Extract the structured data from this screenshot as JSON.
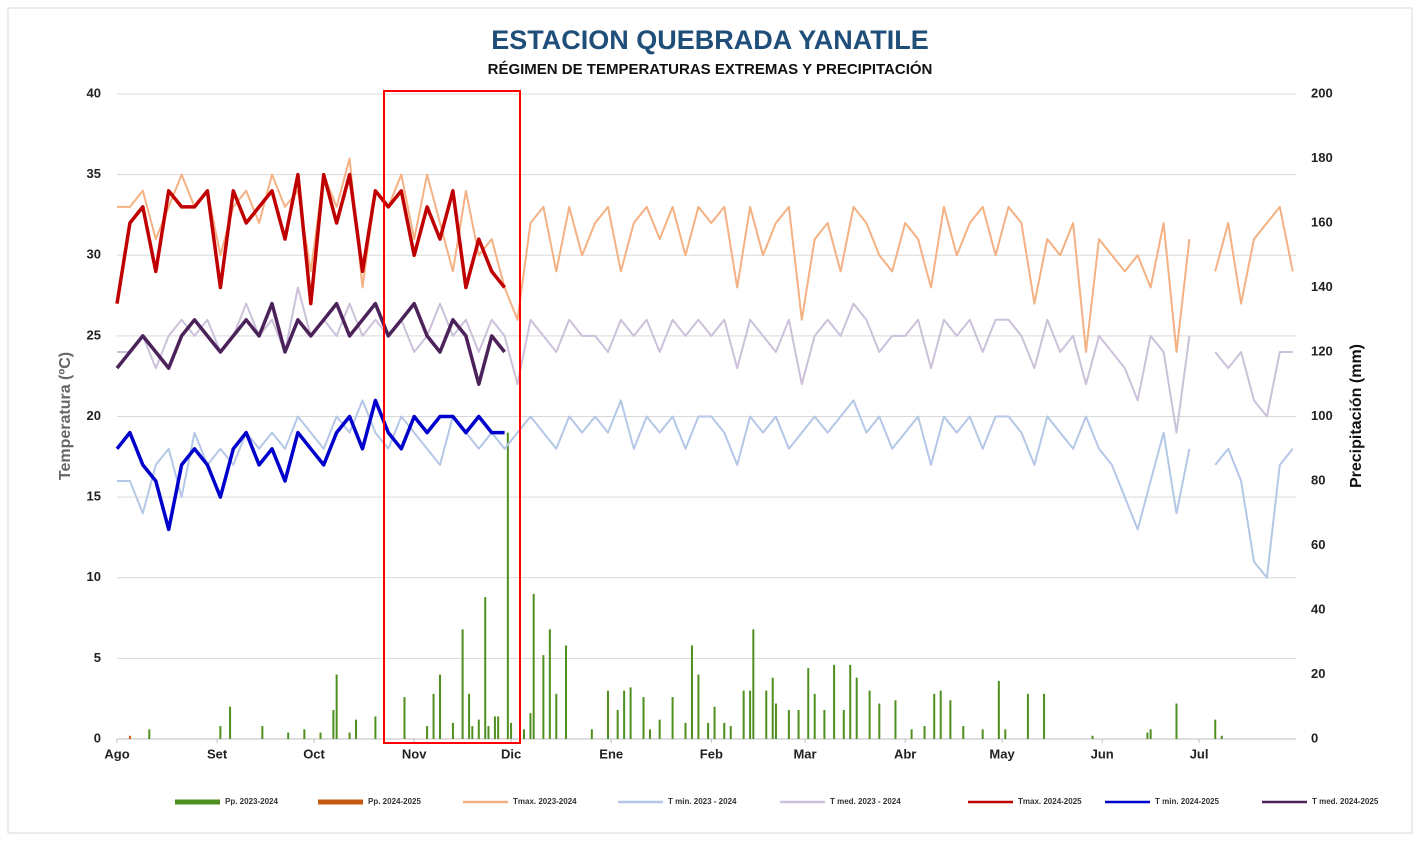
{
  "chart_data": {
    "type": "line",
    "title": "ESTACION QUEBRADA YANATILE",
    "subtitle": "RÉGIMEN DE TEMPERATURAS  EXTREMAS Y PRECIPITACIÓN",
    "y_label": "Temperatura (ºC)",
    "y2_label": "Precipitación (mm)",
    "xlim": [
      0,
      365
    ],
    "xticks": [
      {
        "value": 0,
        "label": "Ago"
      },
      {
        "value": 31,
        "label": "Set"
      },
      {
        "value": 61,
        "label": "Oct"
      },
      {
        "value": 92,
        "label": "Nov"
      },
      {
        "value": 122,
        "label": "Dic"
      },
      {
        "value": 153,
        "label": "Ene"
      },
      {
        "value": 184,
        "label": "Feb"
      },
      {
        "value": 213,
        "label": "Mar"
      },
      {
        "value": 244,
        "label": "Abr"
      },
      {
        "value": 274,
        "label": "May"
      },
      {
        "value": 305,
        "label": "Jun"
      },
      {
        "value": 335,
        "label": "Jul"
      }
    ],
    "ylim": [
      0,
      40
    ],
    "yticks": [
      0,
      5,
      10,
      15,
      20,
      25,
      30,
      35,
      40
    ],
    "y2lim": [
      0,
      200
    ],
    "y2ticks": [
      0,
      20,
      40,
      60,
      80,
      100,
      120,
      140,
      160,
      180,
      200
    ],
    "grid": true,
    "legend": "bottom",
    "x": [
      0,
      4,
      8,
      12,
      16,
      20,
      24,
      28,
      32,
      36,
      40,
      44,
      48,
      52,
      56,
      60,
      64,
      68,
      72,
      76,
      80,
      84,
      88,
      92,
      96,
      100,
      104,
      108,
      112,
      116,
      120,
      124,
      128,
      132,
      136,
      140,
      144,
      148,
      152,
      156,
      160,
      164,
      168,
      172,
      176,
      180,
      184,
      188,
      192,
      196,
      200,
      204,
      208,
      212,
      216,
      220,
      224,
      228,
      232,
      236,
      240,
      244,
      248,
      252,
      256,
      260,
      264,
      268,
      272,
      276,
      280,
      284,
      288,
      292,
      296,
      300,
      304,
      308,
      312,
      316,
      320,
      324,
      328,
      332,
      336,
      340,
      344,
      348,
      352,
      356,
      360,
      364
    ],
    "series": [
      {
        "name": "Pp. 2023-2024",
        "type": "bar",
        "axis": "y2",
        "color": "#4e8f1f",
        "x": [
          10,
          32,
          35,
          45,
          53,
          58,
          63,
          67,
          68,
          72,
          74,
          80,
          89,
          96,
          98,
          100,
          104,
          107,
          109,
          110,
          112,
          114,
          115,
          117,
          118,
          121,
          122,
          126,
          128,
          129,
          132,
          134,
          136,
          139,
          147,
          152,
          155,
          157,
          159,
          163,
          165,
          168,
          172,
          176,
          178,
          180,
          183,
          185,
          188,
          190,
          194,
          196,
          197,
          201,
          203,
          204,
          208,
          211,
          214,
          216,
          219,
          222,
          225,
          227,
          229,
          233,
          236,
          241,
          246,
          250,
          253,
          255,
          258,
          262,
          268,
          273,
          275,
          282,
          287,
          302,
          319,
          320,
          328,
          340,
          342
        ],
        "values": [
          3,
          4,
          10,
          4,
          2,
          3,
          2,
          9,
          20,
          2,
          6,
          7,
          13,
          4,
          14,
          20,
          5,
          34,
          14,
          4,
          6,
          44,
          4,
          7,
          7,
          95,
          5,
          3,
          8,
          45,
          26,
          34,
          14,
          29,
          3,
          15,
          9,
          15,
          16,
          13,
          3,
          6,
          13,
          5,
          29,
          20,
          5,
          10,
          5,
          4,
          15,
          15,
          34,
          15,
          19,
          11,
          9,
          9,
          22,
          14,
          9,
          23,
          9,
          23,
          19,
          15,
          11,
          12,
          3,
          4,
          14,
          15,
          12,
          4,
          3,
          18,
          3,
          14,
          14,
          1,
          2,
          3,
          11,
          6,
          1
        ]
      },
      {
        "name": "Pp. 2024-2025",
        "type": "bar",
        "axis": "y2",
        "color": "#c55a11",
        "x": [
          4
        ],
        "values": [
          1
        ]
      },
      {
        "name": "Tmax. 2023-2024",
        "type": "line",
        "color": "#f4b183",
        "width": 2,
        "values": [
          33,
          33,
          34,
          31,
          33,
          35,
          33,
          34,
          30,
          33,
          34,
          32,
          35,
          33,
          34,
          29,
          35,
          33,
          36,
          28,
          34,
          33,
          35,
          31,
          35,
          32,
          29,
          34,
          30,
          31,
          28,
          26,
          32,
          33,
          29,
          33,
          30,
          32,
          33,
          29,
          32,
          33,
          31,
          33,
          30,
          33,
          32,
          33,
          28,
          33,
          30,
          32,
          33,
          26,
          31,
          32,
          29,
          33,
          32,
          30,
          29,
          32,
          31,
          28,
          33,
          30,
          32,
          33,
          30,
          33,
          32,
          27,
          31,
          30,
          32,
          24,
          31,
          30,
          29,
          30,
          28,
          32,
          24,
          31,
          null,
          29,
          32,
          27,
          31,
          32,
          33,
          29
        ]
      },
      {
        "name": "T min. 2023 - 2024",
        "type": "line",
        "color": "#b4c7e7",
        "width": 2,
        "values": [
          16,
          16,
          14,
          17,
          18,
          15,
          19,
          17,
          18,
          17,
          19,
          18,
          19,
          18,
          20,
          19,
          18,
          20,
          19,
          21,
          19,
          18,
          20,
          19,
          18,
          17,
          20,
          19,
          18,
          19,
          18,
          19,
          20,
          19,
          18,
          20,
          19,
          20,
          19,
          21,
          18,
          20,
          19,
          20,
          18,
          20,
          20,
          19,
          17,
          20,
          19,
          20,
          18,
          19,
          20,
          19,
          20,
          21,
          19,
          20,
          18,
          19,
          20,
          17,
          20,
          19,
          20,
          18,
          20,
          20,
          19,
          17,
          20,
          19,
          18,
          20,
          18,
          17,
          15,
          13,
          16,
          19,
          14,
          18,
          null,
          17,
          18,
          16,
          11,
          10,
          17,
          18
        ]
      },
      {
        "name": "T med. 2023 - 2024",
        "type": "line",
        "color": "#ccc1da",
        "width": 2,
        "values": [
          24,
          24,
          25,
          23,
          25,
          26,
          25,
          26,
          24,
          25,
          27,
          25,
          26,
          24,
          28,
          25,
          26,
          25,
          27,
          25,
          26,
          25,
          26,
          24,
          25,
          27,
          25,
          26,
          24,
          26,
          25,
          22,
          26,
          25,
          24,
          26,
          25,
          25,
          24,
          26,
          25,
          26,
          24,
          26,
          25,
          26,
          25,
          26,
          23,
          26,
          25,
          24,
          26,
          22,
          25,
          26,
          25,
          27,
          26,
          24,
          25,
          25,
          26,
          23,
          26,
          25,
          26,
          24,
          26,
          26,
          25,
          23,
          26,
          24,
          25,
          22,
          25,
          24,
          23,
          21,
          25,
          24,
          19,
          25,
          null,
          24,
          23,
          24,
          21,
          20,
          24,
          24
        ]
      },
      {
        "name": "Tmax. 2024-2025",
        "type": "line",
        "color": "#c00000",
        "width": 3.5,
        "x": [
          0,
          4,
          8,
          12,
          16,
          20,
          24,
          28,
          32,
          36,
          40,
          44,
          48,
          52,
          56,
          60,
          64,
          68,
          72,
          76,
          80,
          84,
          88,
          92,
          96,
          100,
          104,
          108,
          112,
          116,
          120
        ],
        "values": [
          27,
          32,
          33,
          29,
          34,
          33,
          33,
          34,
          28,
          34,
          32,
          33,
          34,
          31,
          35,
          27,
          35,
          32,
          35,
          29,
          34,
          33,
          34,
          30,
          33,
          31,
          34,
          28,
          31,
          29,
          28
        ]
      },
      {
        "name": "T min. 2024-2025",
        "type": "line",
        "color": "#0000cc",
        "width": 3.5,
        "x": [
          0,
          4,
          8,
          12,
          16,
          20,
          24,
          28,
          32,
          36,
          40,
          44,
          48,
          52,
          56,
          60,
          64,
          68,
          72,
          76,
          80,
          84,
          88,
          92,
          96,
          100,
          104,
          108,
          112,
          116,
          120
        ],
        "values": [
          18,
          19,
          17,
          16,
          13,
          17,
          18,
          17,
          15,
          18,
          19,
          17,
          18,
          16,
          19,
          18,
          17,
          19,
          20,
          18,
          21,
          19,
          18,
          20,
          19,
          20,
          20,
          19,
          20,
          19,
          19
        ]
      },
      {
        "name": "T med. 2024-2025",
        "type": "line",
        "color": "#4b2259",
        "width": 3.5,
        "x": [
          0,
          4,
          8,
          12,
          16,
          20,
          24,
          28,
          32,
          36,
          40,
          44,
          48,
          52,
          56,
          60,
          64,
          68,
          72,
          76,
          80,
          84,
          88,
          92,
          96,
          100,
          104,
          108,
          112,
          116,
          120
        ],
        "values": [
          23,
          24,
          25,
          24,
          23,
          25,
          26,
          25,
          24,
          25,
          26,
          25,
          27,
          24,
          26,
          25,
          26,
          27,
          25,
          26,
          27,
          25,
          26,
          27,
          25,
          24,
          26,
          25,
          22,
          25,
          24
        ]
      }
    ]
  }
}
